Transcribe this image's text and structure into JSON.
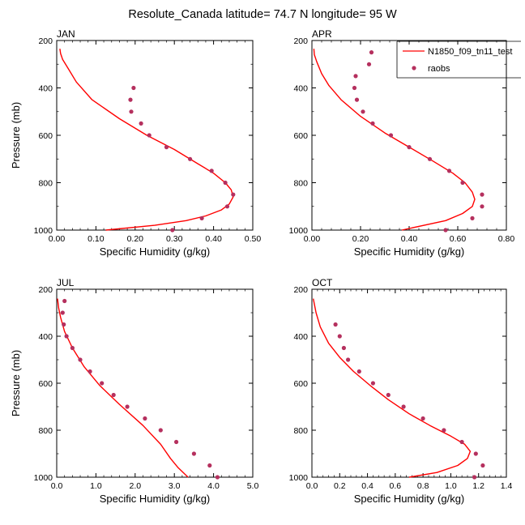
{
  "title": "Resolute_Canada  latitude= 74.7 N longitude= 95 W",
  "legend": {
    "model_label": "N1850_f09_tn11_test",
    "obs_label": "raobs",
    "model_color": "#ff0000",
    "obs_color": "#b5305e"
  },
  "chart_data": [
    {
      "type": "line",
      "title": "JAN",
      "xlabel": "Specific Humidity (g/kg)",
      "ylabel": "Pressure (mb)",
      "xlim": [
        0,
        0.5
      ],
      "ylim": [
        1000,
        200
      ],
      "xticks": [
        0,
        0.1,
        0.2,
        0.3,
        0.4,
        0.5
      ],
      "xtick_labels": [
        "0.00",
        "0.10",
        "0.20",
        "0.30",
        "0.40",
        "0.50"
      ],
      "yticks": [
        200,
        400,
        600,
        800,
        1000
      ],
      "ytick_labels": [
        "200",
        "400",
        "600",
        "800",
        "1000"
      ],
      "series": [
        {
          "name": "N1850_f09_tn11_test",
          "kind": "line",
          "x": [
            0.125,
            0.25,
            0.33,
            0.38,
            0.42,
            0.44,
            0.45,
            0.445,
            0.43,
            0.4,
            0.36,
            0.3,
            0.23,
            0.16,
            0.09,
            0.05,
            0.03,
            0.015,
            0.01,
            0.008
          ],
          "y": [
            1000,
            980,
            960,
            940,
            915,
            890,
            860,
            830,
            800,
            760,
            720,
            660,
            600,
            530,
            450,
            375,
            320,
            280,
            255,
            235
          ]
        },
        {
          "name": "raobs",
          "kind": "scatter",
          "x": [
            0.295,
            0.37,
            0.435,
            0.45,
            0.43,
            0.395,
            0.34,
            0.28,
            0.236,
            0.215,
            0.19,
            0.188,
            0.196
          ],
          "y": [
            1000,
            950,
            900,
            850,
            800,
            750,
            700,
            650,
            600,
            550,
            500,
            450,
            400
          ]
        }
      ]
    },
    {
      "type": "line",
      "title": "APR",
      "xlabel": "Specific Humidity (g/kg)",
      "ylabel": "Pressure (mb)",
      "xlim": [
        0,
        0.8
      ],
      "ylim": [
        1000,
        200
      ],
      "xticks": [
        0,
        0.2,
        0.4,
        0.6,
        0.8
      ],
      "xtick_labels": [
        "0.00",
        "0.20",
        "0.40",
        "0.60",
        "0.80"
      ],
      "yticks": [
        200,
        400,
        600,
        800,
        1000
      ],
      "ytick_labels": [
        "200",
        "400",
        "600",
        "800",
        "1000"
      ],
      "series": [
        {
          "name": "N1850_f09_tn11_test",
          "kind": "line",
          "x": [
            0.37,
            0.55,
            0.62,
            0.66,
            0.67,
            0.66,
            0.63,
            0.58,
            0.5,
            0.4,
            0.3,
            0.2,
            0.12,
            0.07,
            0.04,
            0.02,
            0.01,
            0.008
          ],
          "y": [
            1000,
            960,
            930,
            900,
            870,
            840,
            800,
            760,
            710,
            650,
            590,
            520,
            450,
            390,
            340,
            290,
            260,
            235
          ]
        },
        {
          "name": "raobs",
          "kind": "scatter",
          "x": [
            0.55,
            0.66,
            0.7,
            0.7,
            0.62,
            0.565,
            0.485,
            0.4,
            0.325,
            0.25,
            0.21,
            0.185,
            0.175,
            0.18,
            0.235,
            0.245
          ],
          "y": [
            1000,
            950,
            900,
            850,
            800,
            750,
            700,
            650,
            600,
            550,
            500,
            450,
            400,
            350,
            300,
            250
          ]
        }
      ]
    },
    {
      "type": "line",
      "title": "JUL",
      "xlabel": "Specific Humidity (g/kg)",
      "ylabel": "Pressure (mb)",
      "xlim": [
        0,
        5
      ],
      "ylim": [
        1000,
        200
      ],
      "xticks": [
        0,
        1,
        2,
        3,
        4,
        5
      ],
      "xtick_labels": [
        "0.0",
        "1.0",
        "2.0",
        "3.0",
        "4.0",
        "5.0"
      ],
      "yticks": [
        200,
        400,
        600,
        800,
        1000
      ],
      "ytick_labels": [
        "200",
        "400",
        "600",
        "800",
        "1000"
      ],
      "series": [
        {
          "name": "N1850_f09_tn11_test",
          "kind": "line",
          "x": [
            3.35,
            3.1,
            2.9,
            2.65,
            2.2,
            1.6,
            1.1,
            0.7,
            0.4,
            0.2,
            0.1,
            0.05,
            0.02
          ],
          "y": [
            1000,
            960,
            920,
            860,
            780,
            690,
            610,
            530,
            450,
            380,
            320,
            280,
            240
          ]
        },
        {
          "name": "raobs",
          "kind": "scatter",
          "x": [
            4.1,
            3.9,
            3.5,
            3.05,
            2.65,
            2.25,
            1.8,
            1.45,
            1.15,
            0.85,
            0.6,
            0.4,
            0.25,
            0.18,
            0.15,
            0.2
          ],
          "y": [
            1000,
            950,
            900,
            850,
            800,
            750,
            700,
            650,
            600,
            550,
            500,
            450,
            400,
            350,
            300,
            250
          ]
        }
      ]
    },
    {
      "type": "line",
      "title": "OCT",
      "xlabel": "Specific Humidity (g/kg)",
      "ylabel": "Pressure (mb)",
      "xlim": [
        0,
        1.4
      ],
      "ylim": [
        1000,
        200
      ],
      "xticks": [
        0,
        0.2,
        0.4,
        0.6,
        0.8,
        1.0,
        1.2,
        1.4
      ],
      "xtick_labels": [
        "0.0",
        "0.2",
        "0.4",
        "0.6",
        "0.8",
        "1.0",
        "1.2",
        "1.4"
      ],
      "yticks": [
        200,
        400,
        600,
        800,
        1000
      ],
      "ytick_labels": [
        "200",
        "400",
        "600",
        "800",
        "1000"
      ],
      "series": [
        {
          "name": "N1850_f09_tn11_test",
          "kind": "line",
          "x": [
            0.7,
            0.9,
            1.05,
            1.12,
            1.14,
            1.1,
            1.0,
            0.85,
            0.7,
            0.55,
            0.42,
            0.3,
            0.2,
            0.12,
            0.06,
            0.03,
            0.01
          ],
          "y": [
            1000,
            980,
            950,
            920,
            890,
            860,
            825,
            780,
            730,
            670,
            610,
            550,
            490,
            430,
            360,
            300,
            240
          ]
        },
        {
          "name": "raobs",
          "kind": "scatter",
          "x": [
            1.17,
            1.23,
            1.18,
            1.08,
            0.95,
            0.8,
            0.66,
            0.55,
            0.44,
            0.34,
            0.26,
            0.23,
            0.2,
            0.17
          ],
          "y": [
            1000,
            950,
            900,
            850,
            800,
            750,
            700,
            650,
            600,
            550,
            500,
            450,
            400,
            350
          ]
        }
      ]
    }
  ]
}
